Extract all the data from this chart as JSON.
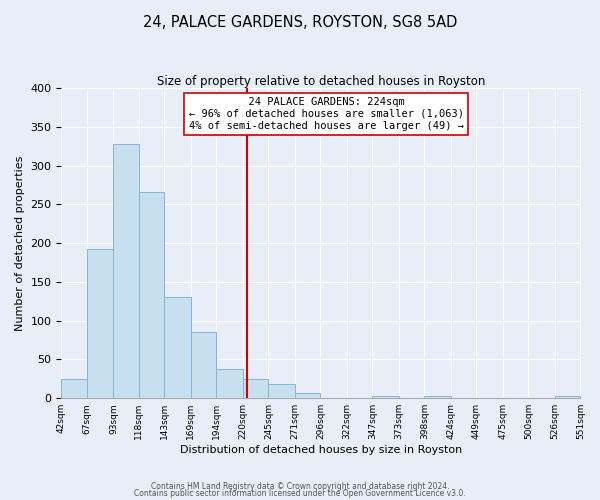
{
  "title": "24, PALACE GARDENS, ROYSTON, SG8 5AD",
  "subtitle": "Size of property relative to detached houses in Royston",
  "xlabel": "Distribution of detached houses by size in Royston",
  "ylabel": "Number of detached properties",
  "bar_color": "#c8dff0",
  "bar_edge_color": "#8ab4d4",
  "bin_edges": [
    42,
    67,
    93,
    118,
    143,
    169,
    194,
    220,
    245,
    271,
    296,
    322,
    347,
    373,
    398,
    424,
    449,
    475,
    500,
    526,
    551
  ],
  "bar_heights": [
    25,
    193,
    328,
    266,
    130,
    86,
    38,
    25,
    18,
    7,
    0,
    0,
    3,
    0,
    3,
    0,
    0,
    0,
    0,
    3
  ],
  "tick_labels": [
    "42sqm",
    "67sqm",
    "93sqm",
    "118sqm",
    "143sqm",
    "169sqm",
    "194sqm",
    "220sqm",
    "245sqm",
    "271sqm",
    "296sqm",
    "322sqm",
    "347sqm",
    "373sqm",
    "398sqm",
    "424sqm",
    "449sqm",
    "475sqm",
    "500sqm",
    "526sqm",
    "551sqm"
  ],
  "property_size": 224,
  "property_line_color": "#cc0000",
  "annotation_title": "24 PALACE GARDENS: 224sqm",
  "annotation_line1": "← 96% of detached houses are smaller (1,063)",
  "annotation_line2": "4% of semi-detached houses are larger (49) →",
  "annotation_box_color": "#ffffff",
  "annotation_box_edge": "#cc0000",
  "ylim": [
    0,
    400
  ],
  "yticks": [
    0,
    50,
    100,
    150,
    200,
    250,
    300,
    350,
    400
  ],
  "footnote1": "Contains HM Land Registry data © Crown copyright and database right 2024.",
  "footnote2": "Contains public sector information licensed under the Open Government Licence v3.0.",
  "background_color": "#e8eef8",
  "plot_bg_color": "#e8eef8",
  "grid_color": "#ffffff"
}
